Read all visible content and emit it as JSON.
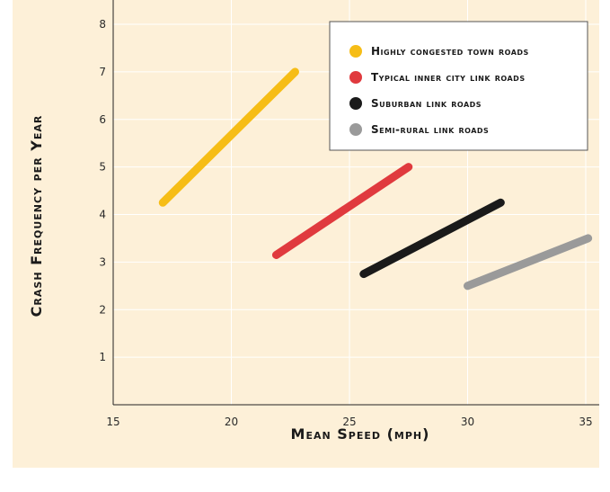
{
  "chart_data": {
    "type": "line",
    "title": "",
    "xlabel": "Mean Speed (mph)",
    "ylabel": "Crash Frequency per Year",
    "xlim": [
      15,
      35.5
    ],
    "ylim": [
      0,
      8.5
    ],
    "x_ticks": [
      "15",
      "20",
      "25",
      "30",
      "35"
    ],
    "y_ticks": [
      "1",
      "2",
      "3",
      "4",
      "5",
      "6",
      "7",
      "8"
    ],
    "grid": true,
    "legend_position": "top-right",
    "series": [
      {
        "name": "Highly congested town roads",
        "color": "#f6bd16",
        "x": [
          17.1,
          22.7
        ],
        "y": [
          4.25,
          7.0
        ]
      },
      {
        "name": "Typical inner city link roads",
        "color": "#e03a3e",
        "x": [
          21.9,
          27.5
        ],
        "y": [
          3.15,
          5.0
        ]
      },
      {
        "name": "Suburban link roads",
        "color": "#1a1a1a",
        "x": [
          25.6,
          31.4
        ],
        "y": [
          2.75,
          4.25
        ]
      },
      {
        "name": "Semi-rural link roads",
        "color": "#9a9a9a",
        "x": [
          30.0,
          35.1
        ],
        "y": [
          2.5,
          3.5
        ]
      }
    ]
  }
}
